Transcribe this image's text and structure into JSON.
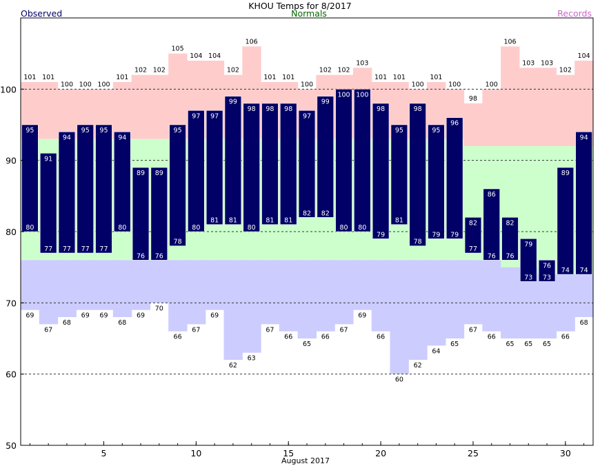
{
  "chart_data": {
    "type": "bar",
    "title": "KHOU Temps for 8/2017",
    "legend": {
      "observed": "Observed",
      "normals": "Normals",
      "records": "Records"
    },
    "xlabel": "August 2017",
    "ylim": [
      50,
      110
    ],
    "y_ticks": [
      "50",
      "60",
      "70",
      "80",
      "90",
      "100"
    ],
    "x_ticks": [
      {
        "day": 5,
        "label": "5"
      },
      {
        "day": 10,
        "label": "10"
      },
      {
        "day": 15,
        "label": "15"
      },
      {
        "day": 20,
        "label": "20"
      },
      {
        "day": 25,
        "label": "25"
      },
      {
        "day": 30,
        "label": "30"
      }
    ],
    "days": [
      1,
      2,
      3,
      4,
      5,
      6,
      7,
      8,
      9,
      10,
      11,
      12,
      13,
      14,
      15,
      16,
      17,
      18,
      19,
      20,
      21,
      22,
      23,
      24,
      25,
      26,
      27,
      28,
      29,
      30,
      31
    ],
    "observed_high": [
      95,
      91,
      94,
      95,
      95,
      94,
      89,
      89,
      95,
      97,
      97,
      99,
      98,
      98,
      98,
      97,
      99,
      100,
      100,
      98,
      95,
      98,
      95,
      96,
      82,
      86,
      82,
      79,
      76,
      89,
      94
    ],
    "observed_low": [
      80,
      77,
      77,
      77,
      77,
      80,
      76,
      76,
      78,
      80,
      81,
      81,
      80,
      81,
      81,
      82,
      82,
      80,
      80,
      79,
      81,
      78,
      79,
      79,
      77,
      76,
      76,
      73,
      73,
      74,
      74
    ],
    "record_high": [
      101,
      101,
      100,
      100,
      100,
      101,
      102,
      102,
      105,
      104,
      104,
      102,
      106,
      101,
      101,
      100,
      102,
      102,
      103,
      101,
      101,
      100,
      101,
      100,
      98,
      100,
      106,
      103,
      103,
      102,
      104
    ],
    "record_low": [
      69,
      67,
      68,
      69,
      69,
      68,
      69,
      70,
      66,
      67,
      69,
      62,
      63,
      67,
      66,
      65,
      66,
      67,
      69,
      66,
      60,
      62,
      64,
      65,
      67,
      66,
      65,
      65,
      65,
      66,
      68
    ],
    "normal_high": [
      93,
      93,
      93,
      93,
      93,
      93,
      93,
      93,
      93,
      93,
      93,
      93,
      93,
      93,
      93,
      93,
      93,
      93,
      93,
      93,
      93,
      93,
      93,
      93,
      92,
      92,
      92,
      92,
      92,
      92,
      92
    ],
    "normal_low": [
      76,
      76,
      76,
      76,
      76,
      76,
      76,
      76,
      76,
      76,
      76,
      76,
      76,
      76,
      76,
      76,
      76,
      76,
      76,
      76,
      76,
      76,
      76,
      76,
      76,
      76,
      75,
      75,
      74,
      74,
      74
    ],
    "colors": {
      "record_high_fill": "#ffcccc",
      "normal_fill": "#ccffcc",
      "record_low_fill": "#ccccff",
      "observed_bar": "#000066",
      "observed_text": "#000066",
      "normals_text": "#006600",
      "records_text": "#cc66cc",
      "gridline": "#333333"
    },
    "grid": true
  }
}
